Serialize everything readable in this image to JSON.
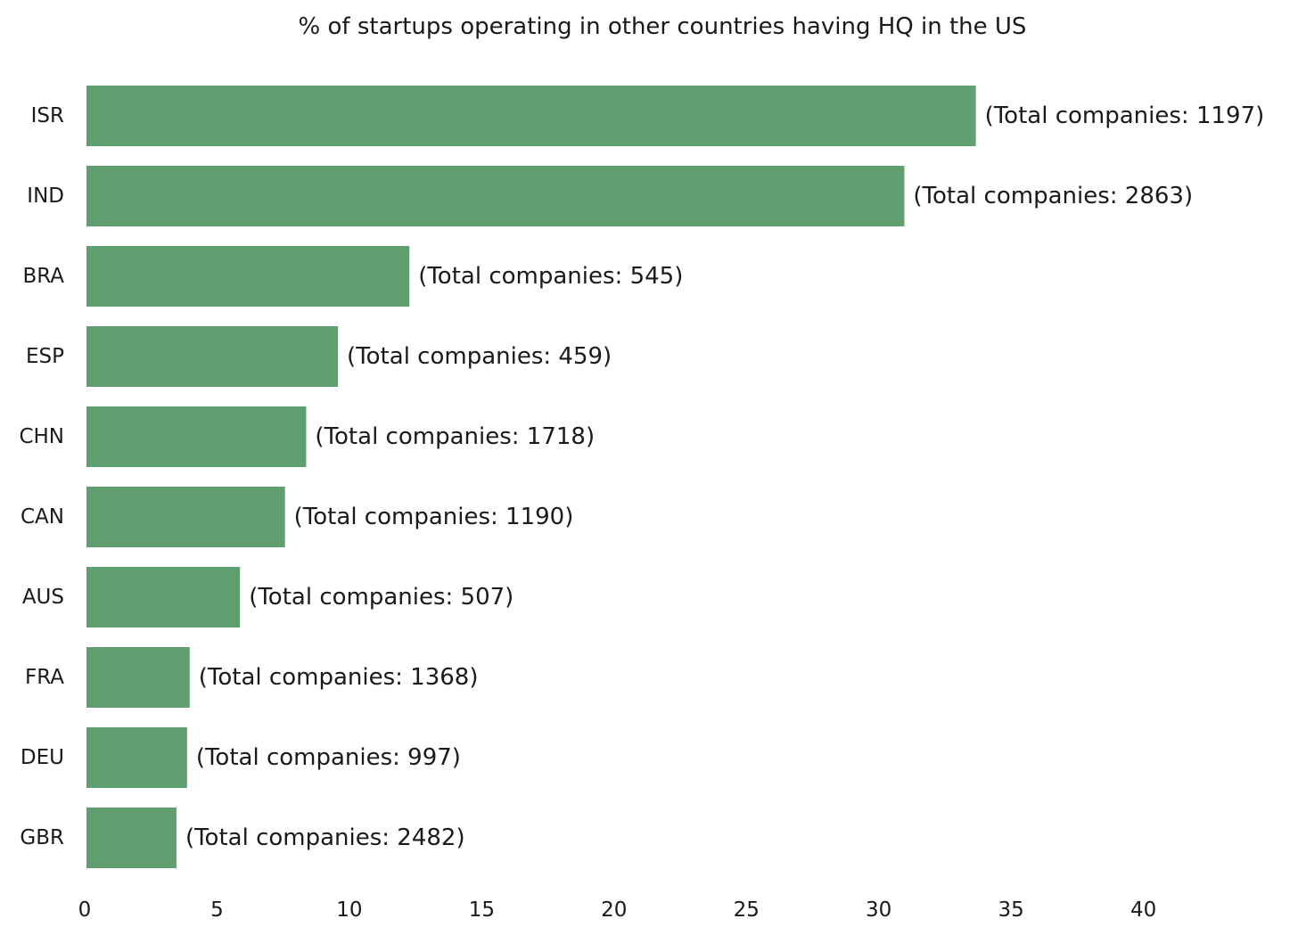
{
  "chart_data": {
    "type": "bar",
    "orientation": "horizontal",
    "title": "% of startups operating in other countries having HQ in the US",
    "xlabel": "",
    "ylabel": "",
    "xlim": [
      0,
      45
    ],
    "x_ticks": [
      "0",
      "5",
      "10",
      "15",
      "20",
      "25",
      "30",
      "35",
      "40"
    ],
    "categories": [
      "ISR",
      "IND",
      "BRA",
      "ESP",
      "CHN",
      "CAN",
      "AUS",
      "FRA",
      "DEU",
      "GBR"
    ],
    "values": [
      33.6,
      30.9,
      12.2,
      9.5,
      8.3,
      7.5,
      5.8,
      3.9,
      3.8,
      3.4
    ],
    "annotations": [
      "(Total companies: 1197)",
      "(Total companies: 2863)",
      "(Total companies: 545)",
      "(Total companies: 459)",
      "(Total companies: 1718)",
      "(Total companies: 1190)",
      "(Total companies: 507)",
      "(Total companies: 1368)",
      "(Total companies: 997)",
      "(Total companies: 2482)"
    ],
    "grid": false,
    "bar_color": "#5f9e6e"
  }
}
